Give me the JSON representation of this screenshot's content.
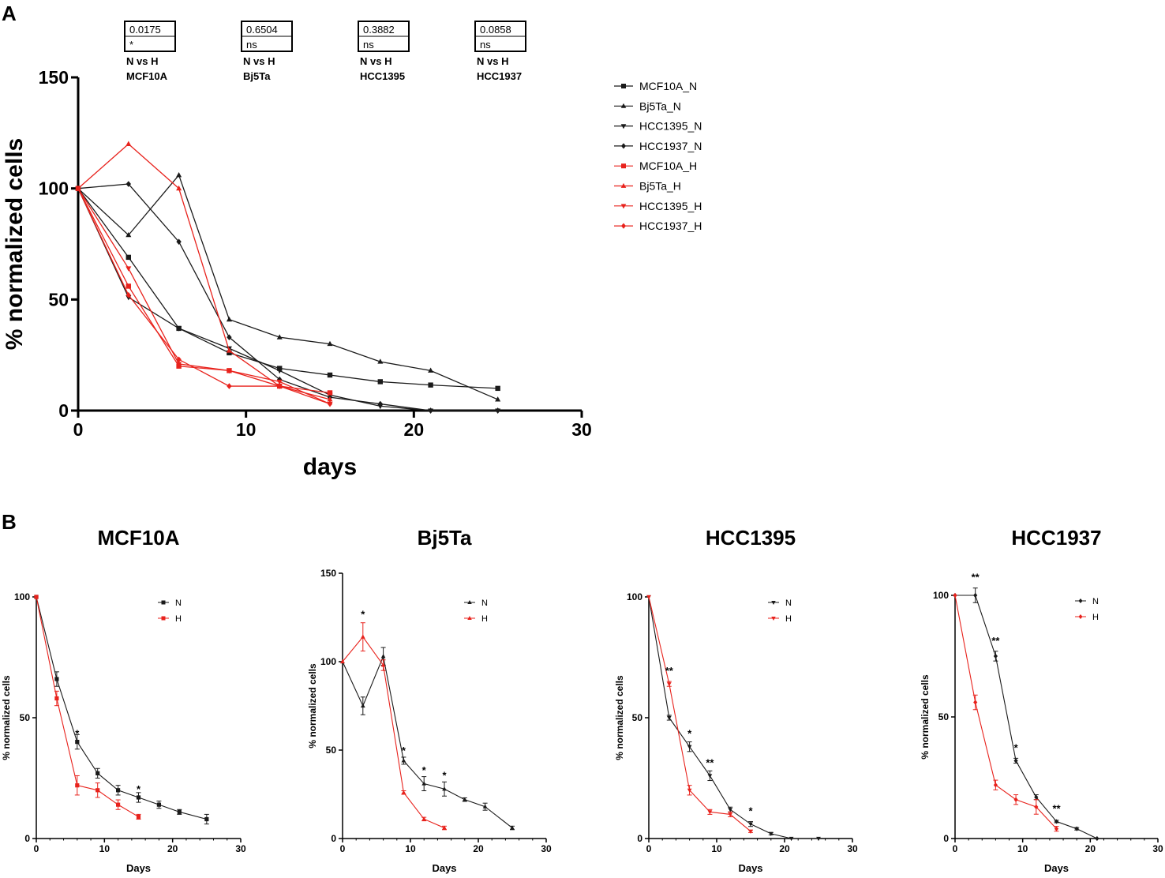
{
  "panel_labels": {
    "a": "A",
    "b": "B"
  },
  "colors": {
    "normal": "#1a1a1a",
    "hypoxia": "#e8221c"
  },
  "chart_data": [
    {
      "id": "A",
      "type": "line",
      "title": "",
      "xlabel": "days",
      "ylabel": "% normalized cells",
      "xlim": [
        0,
        30
      ],
      "ylim": [
        0,
        150
      ],
      "xticks": [
        "0",
        "10",
        "20",
        "30"
      ],
      "yticks": [
        "0",
        "50",
        "100",
        "150"
      ],
      "stats": [
        {
          "p": "0.0175",
          "sig": "*",
          "label": "N vs H",
          "line": "MCF10A"
        },
        {
          "p": "0.6504",
          "sig": "ns",
          "label": "N vs H",
          "line": "Bj5Ta"
        },
        {
          "p": "0.3882",
          "sig": "ns",
          "label": "N vs H",
          "line": "HCC1395"
        },
        {
          "p": "0.0858",
          "sig": "ns",
          "label": "N vs H",
          "line": "HCC1937"
        }
      ],
      "series": [
        {
          "name": "MCF10A_N",
          "color": "#1a1a1a",
          "marker": "square",
          "x": [
            0,
            3,
            6,
            9,
            12,
            15,
            18,
            21,
            25
          ],
          "y": [
            100,
            69,
            37,
            26,
            19,
            16,
            13,
            11.5,
            10
          ]
        },
        {
          "name": "Bj5Ta_N",
          "color": "#1a1a1a",
          "marker": "triangle",
          "x": [
            0,
            3,
            6,
            9,
            12,
            15,
            18,
            21,
            25
          ],
          "y": [
            100,
            79,
            106,
            41,
            33,
            30,
            22,
            18,
            5
          ]
        },
        {
          "name": "HCC1395_N",
          "color": "#1a1a1a",
          "marker": "triangle-down",
          "x": [
            0,
            3,
            6,
            9,
            12,
            15,
            18,
            21,
            25
          ],
          "y": [
            100,
            51,
            37,
            28,
            18,
            7,
            2,
            0,
            0
          ]
        },
        {
          "name": "HCC1937_N",
          "color": "#1a1a1a",
          "marker": "diamond",
          "x": [
            0,
            3,
            6,
            9,
            12,
            15,
            18,
            21,
            25
          ],
          "y": [
            100,
            102,
            76,
            33,
            14,
            6,
            3,
            0,
            0
          ]
        },
        {
          "name": "MCF10A_H",
          "color": "#e8221c",
          "marker": "square",
          "x": [
            0,
            3,
            6,
            9,
            12,
            15
          ],
          "y": [
            100,
            56,
            20,
            18,
            11,
            8
          ]
        },
        {
          "name": "Bj5Ta_H",
          "color": "#e8221c",
          "marker": "triangle",
          "x": [
            0,
            3,
            6,
            9,
            12,
            15
          ],
          "y": [
            100,
            120,
            100,
            27,
            11,
            5
          ]
        },
        {
          "name": "HCC1395_H",
          "color": "#e8221c",
          "marker": "triangle-down",
          "x": [
            0,
            3,
            6,
            9,
            12,
            15
          ],
          "y": [
            100,
            64,
            21,
            18,
            13,
            3
          ]
        },
        {
          "name": "HCC1937_H",
          "color": "#e8221c",
          "marker": "diamond",
          "x": [
            0,
            3,
            6,
            9,
            12,
            15
          ],
          "y": [
            100,
            52,
            23,
            11,
            11,
            3
          ]
        }
      ]
    },
    {
      "id": "B1",
      "type": "line",
      "title": "MCF10A",
      "xlabel": "Days",
      "ylabel": "% normalized cells",
      "xlim": [
        0,
        30
      ],
      "ylim": [
        0,
        100
      ],
      "xticks": [
        "0",
        "10",
        "20",
        "30"
      ],
      "yticks": [
        "0",
        "50",
        "100"
      ],
      "legend": [
        "N",
        "H"
      ],
      "series": [
        {
          "name": "N",
          "color": "#1a1a1a",
          "marker": "square",
          "x": [
            0,
            3,
            6,
            9,
            12,
            15,
            18,
            21,
            25
          ],
          "y": [
            100,
            66,
            40,
            27,
            20,
            17,
            14,
            11,
            8
          ],
          "err": [
            0,
            3,
            3,
            2,
            2,
            2,
            1.5,
            1,
            2
          ]
        },
        {
          "name": "H",
          "color": "#e8221c",
          "marker": "square",
          "x": [
            0,
            3,
            6,
            9,
            12,
            15
          ],
          "y": [
            100,
            58,
            22,
            20,
            14,
            9
          ],
          "err": [
            0,
            3,
            4,
            3,
            2,
            1
          ]
        }
      ],
      "annotations": [
        {
          "x": 6,
          "y": 40,
          "text": "*"
        },
        {
          "x": 15,
          "y": 17,
          "text": "*"
        }
      ]
    },
    {
      "id": "B2",
      "type": "line",
      "title": "Bj5Ta",
      "xlabel": "Days",
      "ylabel": "% normalized cells",
      "xlim": [
        0,
        30
      ],
      "ylim": [
        0,
        150
      ],
      "xticks": [
        "0",
        "10",
        "20",
        "30"
      ],
      "yticks": [
        "0",
        "50",
        "100",
        "150"
      ],
      "legend": [
        "N",
        "H"
      ],
      "series": [
        {
          "name": "N",
          "color": "#1a1a1a",
          "marker": "triangle",
          "x": [
            0,
            3,
            6,
            9,
            12,
            15,
            18,
            21,
            25
          ],
          "y": [
            100,
            75,
            103,
            44,
            31,
            28,
            22,
            18,
            6
          ],
          "err": [
            0,
            5,
            5,
            2,
            4,
            4,
            1,
            2,
            1
          ]
        },
        {
          "name": "H",
          "color": "#e8221c",
          "marker": "triangle",
          "x": [
            0,
            3,
            6,
            9,
            12,
            15
          ],
          "y": [
            100,
            114,
            98,
            26,
            11,
            6
          ],
          "err": [
            0,
            8,
            3,
            1,
            1,
            1
          ]
        }
      ],
      "annotations": [
        {
          "x": 3,
          "y": 122,
          "text": "*"
        },
        {
          "x": 9,
          "y": 45,
          "text": "*"
        },
        {
          "x": 12,
          "y": 34,
          "text": "*"
        },
        {
          "x": 15,
          "y": 31,
          "text": "*"
        }
      ]
    },
    {
      "id": "B3",
      "type": "line",
      "title": "HCC1395",
      "xlabel": "Days",
      "ylabel": "% normalized cells",
      "xlim": [
        0,
        30
      ],
      "ylim": [
        0,
        100
      ],
      "xticks": [
        "0",
        "10",
        "20",
        "30"
      ],
      "yticks": [
        "0",
        "50",
        "100"
      ],
      "legend": [
        "N",
        "H"
      ],
      "series": [
        {
          "name": "N",
          "color": "#1a1a1a",
          "marker": "triangle-down",
          "x": [
            0,
            3,
            6,
            9,
            12,
            15,
            18,
            21,
            25
          ],
          "y": [
            100,
            50,
            38,
            26,
            12,
            6,
            2,
            0,
            0
          ],
          "err": [
            0,
            1,
            2,
            2,
            1,
            1,
            0.5,
            0,
            0
          ]
        },
        {
          "name": "H",
          "color": "#e8221c",
          "marker": "triangle-down",
          "x": [
            0,
            3,
            6,
            9,
            12,
            15
          ],
          "y": [
            100,
            64,
            20,
            11,
            10,
            3
          ],
          "err": [
            0,
            1,
            2,
            1,
            1,
            0.5
          ]
        }
      ],
      "annotations": [
        {
          "x": 3,
          "y": 66,
          "text": "**"
        },
        {
          "x": 6,
          "y": 40,
          "text": "*"
        },
        {
          "x": 9,
          "y": 28,
          "text": "**"
        },
        {
          "x": 15,
          "y": 8,
          "text": "*"
        }
      ]
    },
    {
      "id": "B4",
      "type": "line",
      "title": "HCC1937",
      "xlabel": "Days",
      "ylabel": "% normalized cells",
      "xlim": [
        0,
        30
      ],
      "ylim": [
        0,
        100
      ],
      "xticks": [
        "0",
        "10",
        "20",
        "30"
      ],
      "yticks": [
        "0",
        "50",
        "100"
      ],
      "legend": [
        "N",
        "H"
      ],
      "series": [
        {
          "name": "N",
          "color": "#1a1a1a",
          "marker": "diamond",
          "x": [
            0,
            3,
            6,
            9,
            12,
            15,
            18,
            21
          ],
          "y": [
            100,
            100,
            75,
            32,
            17,
            7,
            4,
            0
          ],
          "err": [
            0,
            3,
            2,
            1,
            1,
            0.5,
            0.5,
            0
          ]
        },
        {
          "name": "H",
          "color": "#e8221c",
          "marker": "diamond",
          "x": [
            0,
            3,
            6,
            9,
            12,
            15
          ],
          "y": [
            100,
            56,
            22,
            16,
            13,
            4
          ],
          "err": [
            0,
            3,
            2,
            2,
            3,
            1
          ]
        }
      ],
      "annotations": [
        {
          "x": 3,
          "y": 104,
          "text": "**"
        },
        {
          "x": 6,
          "y": 78,
          "text": "**"
        },
        {
          "x": 9,
          "y": 34,
          "text": "*"
        },
        {
          "x": 15,
          "y": 9,
          "text": "**"
        }
      ]
    }
  ]
}
